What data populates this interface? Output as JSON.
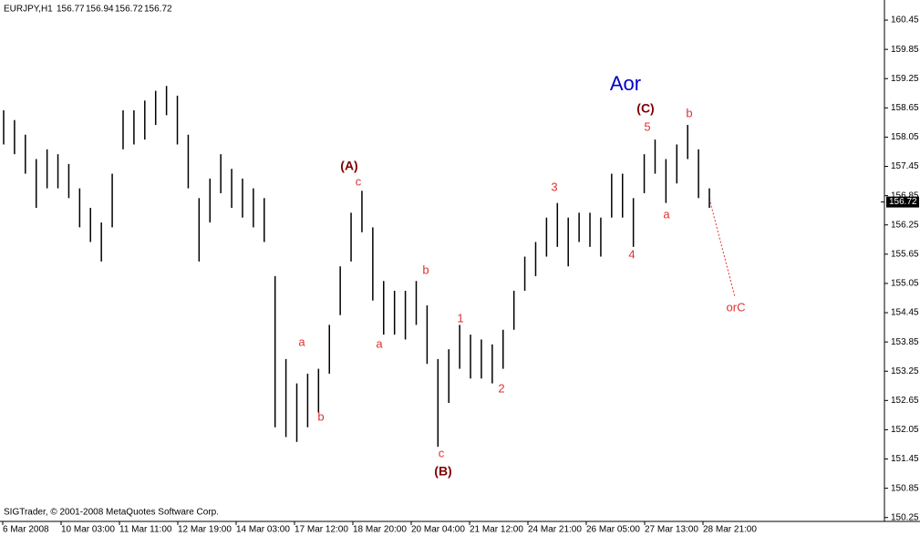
{
  "chart_data": {
    "type": "hilo",
    "symbol": "EURJPY,H1",
    "header_prices": [
      156.77,
      156.94,
      156.72,
      156.72
    ],
    "copyright": "SIGTrader, © 2001-2008 MetaQuotes Software Corp.",
    "color": "#000000",
    "ylim": [
      150.17,
      160.75
    ],
    "yticks": [
      160.45,
      159.85,
      159.25,
      158.65,
      158.05,
      157.45,
      156.85,
      156.25,
      155.65,
      155.05,
      154.45,
      153.85,
      153.25,
      152.65,
      152.05,
      151.45,
      150.85,
      150.25
    ],
    "x_labels": [
      "6 Mar 2008",
      "10 Mar 03:00",
      "11 Mar 11:00",
      "12 Mar 19:00",
      "14 Mar 03:00",
      "17 Mar 12:00",
      "18 Mar 20:00",
      "20 Mar 04:00",
      "21 Mar 12:00",
      "24 Mar 21:00",
      "26 Mar 05:00",
      "27 Mar 13:00",
      "28 Mar 21:00"
    ],
    "last_price": 156.72,
    "high": [
      158.6,
      158.4,
      158.1,
      157.6,
      157.8,
      157.7,
      157.5,
      157.0,
      156.6,
      156.3,
      157.3,
      158.6,
      158.6,
      158.8,
      159.0,
      159.1,
      158.9,
      158.1,
      156.8,
      157.2,
      157.7,
      157.4,
      157.2,
      157.0,
      156.8,
      155.2,
      153.5,
      153.0,
      153.2,
      153.3,
      154.2,
      155.4,
      156.5,
      156.95,
      156.2,
      155.1,
      154.9,
      154.9,
      155.1,
      154.6,
      153.5,
      153.7,
      154.2,
      154.0,
      153.9,
      153.8,
      154.1,
      154.9,
      155.6,
      155.9,
      156.4,
      156.7,
      156.4,
      156.5,
      156.5,
      156.4,
      157.3,
      157.3,
      156.8,
      157.7,
      158.0,
      157.6,
      157.9,
      158.3,
      157.8,
      157.0
    ],
    "low": [
      157.9,
      157.7,
      157.3,
      156.6,
      157.0,
      157.0,
      156.8,
      156.2,
      155.9,
      155.5,
      156.2,
      157.8,
      157.9,
      158.0,
      158.3,
      158.5,
      157.9,
      157.0,
      155.5,
      156.3,
      156.9,
      156.6,
      156.4,
      156.2,
      155.9,
      152.1,
      151.9,
      151.8,
      152.1,
      152.4,
      153.2,
      154.4,
      155.5,
      156.1,
      154.7,
      154.0,
      154.0,
      153.9,
      154.2,
      153.4,
      151.7,
      152.6,
      153.3,
      153.1,
      153.1,
      153.0,
      153.3,
      154.1,
      154.9,
      155.2,
      155.6,
      155.8,
      155.4,
      155.9,
      155.8,
      155.6,
      156.4,
      156.4,
      155.8,
      156.9,
      157.3,
      156.7,
      157.1,
      157.6,
      156.8,
      156.6
    ],
    "annotations": [
      {
        "text": "Aor",
        "color": "#0000cc"
      },
      {
        "text": "(C)",
        "color": "#800000"
      },
      {
        "text": "5",
        "color": "#e03030"
      },
      {
        "text": "b",
        "color": "#e03030"
      },
      {
        "text": "(A)",
        "color": "#800000"
      },
      {
        "text": "c",
        "color": "#e03030"
      },
      {
        "text": "3",
        "color": "#e03030"
      },
      {
        "text": "a",
        "color": "#e03030"
      },
      {
        "text": "4",
        "color": "#e03030"
      },
      {
        "text": "b",
        "color": "#e03030"
      },
      {
        "text": "orC",
        "color": "#e03030"
      },
      {
        "text": "1",
        "color": "#e03030"
      },
      {
        "text": "a",
        "color": "#e03030"
      },
      {
        "text": "a",
        "color": "#e03030"
      },
      {
        "text": "2",
        "color": "#e03030"
      },
      {
        "text": "b",
        "color": "#e03030"
      },
      {
        "text": "c",
        "color": "#e03030"
      },
      {
        "text": "(B)",
        "color": "#800000"
      }
    ]
  }
}
